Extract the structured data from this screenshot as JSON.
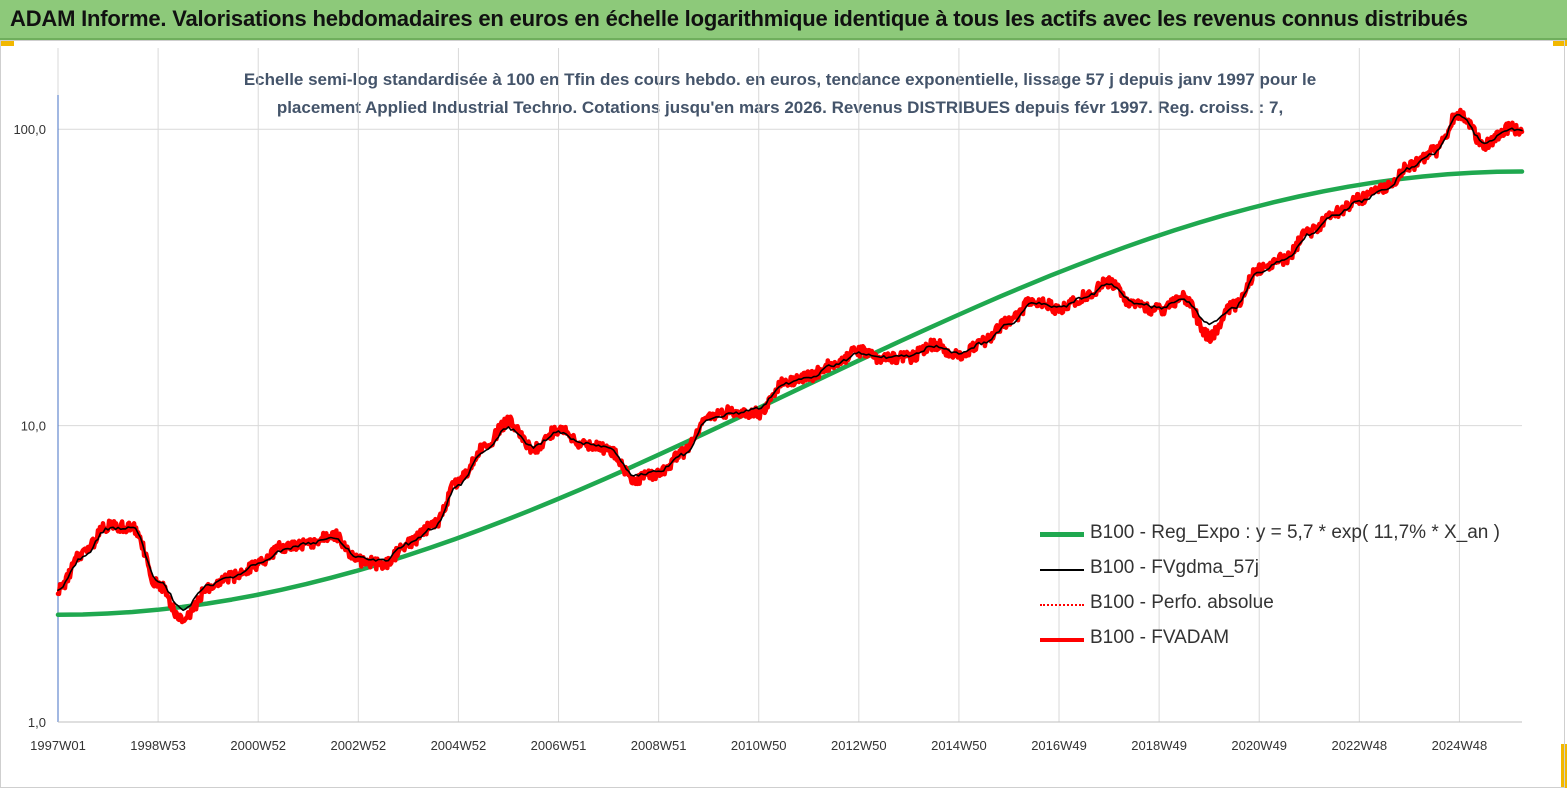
{
  "header": {
    "title": "ADAM Informe. Valorisations hebdomadaires en euros en échelle logarithmique identique à tous les actifs avec les revenus connus distribués"
  },
  "chart_data": {
    "type": "line",
    "title": "Echelle semi-log standardisée à 100 en Tfin des cours hebdo. en euros, tendance exponentielle, lissage 57 j depuis janv 1997 pour le placement Applied Industrial Techno. Cotations jusqu'en mars 2026. Revenus DISTRIBUES depuis févr 1997. Reg. croiss. : 7,",
    "title_lines": [
      "Echelle semi-log standardisée à 100 en Tfin des cours hebdo. en euros, tendance exponentielle, lissage 57 j depuis janv 1997 pour le",
      "placement Applied Industrial Techno. Cotations jusqu'en mars 2026. Revenus DISTRIBUES depuis févr 1997.  Reg. croiss. : 7,"
    ],
    "y_scale": "log",
    "ylim": [
      1,
      200
    ],
    "y_ticks": [
      1,
      10,
      100
    ],
    "y_tick_labels": [
      "1,0",
      "10,0",
      "100,0"
    ],
    "xlim": [
      1997.0,
      2026.25
    ],
    "x_ticks": [
      1997.0,
      1999.0,
      2001.0,
      2003.0,
      2005.0,
      2007.0,
      2009.0,
      2011.0,
      2013.0,
      2015.0,
      2017.0,
      2019.0,
      2021.0,
      2023.0,
      2025.0
    ],
    "x_tick_labels": [
      "1997W01",
      "1998W53",
      "2000W52",
      "2002W52",
      "2004W52",
      "2006W51",
      "2008W51",
      "2010W50",
      "2012W50",
      "2014W50",
      "2016W49",
      "2018W49",
      "2020W49",
      "2022W48",
      "2024W48"
    ],
    "grid": true,
    "legend_position": "bottom-right",
    "series": [
      {
        "name": "B100 - Reg_Expo : y = 5,7 * exp( 11,7% *  X_an )",
        "color": "#1fa84f",
        "style": "solid-thick",
        "x": [
          1997.0,
          2026.25
        ],
        "y": [
          2.3,
          72
        ]
      },
      {
        "name": "B100 - FVgdma_57j",
        "color": "#000000",
        "style": "solid-thin",
        "x": [
          1997.0,
          1997.5,
          1998.0,
          1998.5,
          1999.0,
          1999.5,
          2000.0,
          2000.5,
          2001.0,
          2001.5,
          2002.0,
          2002.5,
          2003.0,
          2003.5,
          2004.0,
          2004.5,
          2005.0,
          2005.5,
          2006.0,
          2006.5,
          2007.0,
          2007.5,
          2008.0,
          2008.5,
          2009.0,
          2009.5,
          2010.0,
          2010.5,
          2011.0,
          2011.5,
          2012.0,
          2012.5,
          2013.0,
          2013.5,
          2014.0,
          2014.5,
          2015.0,
          2015.5,
          2016.0,
          2016.5,
          2017.0,
          2017.5,
          2018.0,
          2018.5,
          2019.0,
          2019.5,
          2020.0,
          2020.5,
          2021.0,
          2021.5,
          2022.0,
          2022.5,
          2023.0,
          2023.5,
          2024.0,
          2024.5,
          2025.0,
          2025.5,
          2026.0,
          2026.25
        ],
        "y": [
          2.8,
          3.6,
          4.5,
          4.5,
          3.0,
          2.4,
          2.9,
          3.1,
          3.4,
          3.8,
          4.0,
          4.2,
          3.6,
          3.5,
          4.0,
          4.5,
          6.3,
          8.2,
          9.8,
          8.5,
          9.5,
          8.7,
          8.5,
          6.8,
          7.0,
          8.0,
          10.5,
          11.0,
          11.5,
          13.8,
          14.5,
          16.0,
          17.5,
          17.0,
          17.2,
          18.5,
          17.5,
          19.0,
          22.0,
          26.0,
          25.0,
          27.0,
          30.0,
          26.0,
          25.0,
          26.5,
          22.0,
          25.0,
          33.0,
          36.0,
          44.0,
          51.0,
          57.0,
          62.0,
          74.0,
          83.0,
          112.0,
          90.0,
          100.0,
          99.0
        ]
      },
      {
        "name": "B100 - Perfo. absolue",
        "color": "#ff0000",
        "style": "dotted",
        "x": [
          1997.0,
          1997.5,
          1998.0,
          1998.5,
          1999.0,
          1999.5,
          2000.0,
          2000.5,
          2001.0,
          2001.5,
          2002.0,
          2002.5,
          2003.0,
          2003.5,
          2004.0,
          2004.5,
          2005.0,
          2005.5,
          2006.0,
          2006.5,
          2007.0,
          2007.5,
          2008.0,
          2008.5,
          2009.0,
          2009.5,
          2010.0,
          2010.5,
          2011.0,
          2011.5,
          2012.0,
          2012.5,
          2013.0,
          2013.5,
          2014.0,
          2014.5,
          2015.0,
          2015.5,
          2016.0,
          2016.5,
          2017.0,
          2017.5,
          2018.0,
          2018.5,
          2019.0,
          2019.5,
          2020.0,
          2020.5,
          2021.0,
          2021.5,
          2022.0,
          2022.5,
          2023.0,
          2023.5,
          2024.0,
          2024.5,
          2025.0,
          2025.5,
          2026.0,
          2026.25
        ],
        "y": [
          2.8,
          3.7,
          4.6,
          4.5,
          2.9,
          2.2,
          2.8,
          3.1,
          3.4,
          3.9,
          4.0,
          4.3,
          3.5,
          3.4,
          4.0,
          4.6,
          6.5,
          8.4,
          10.3,
          8.3,
          9.7,
          8.6,
          8.3,
          6.6,
          6.9,
          8.1,
          10.8,
          11.2,
          11.0,
          14.0,
          14.7,
          16.2,
          17.8,
          16.8,
          17.0,
          18.8,
          17.2,
          19.2,
          22.5,
          26.5,
          24.8,
          27.2,
          30.5,
          25.5,
          24.5,
          27.0,
          20.0,
          25.5,
          33.5,
          36.5,
          45.0,
          52.0,
          58.0,
          63.0,
          75.0,
          84.0,
          113.0,
          89.0,
          101.0,
          98.0
        ]
      },
      {
        "name": "B100 - FVADAM",
        "color": "#ff0000",
        "style": "solid-thick",
        "x": [
          1997.0,
          1997.5,
          1998.0,
          1998.5,
          1999.0,
          1999.5,
          2000.0,
          2000.5,
          2001.0,
          2001.5,
          2002.0,
          2002.5,
          2003.0,
          2003.5,
          2004.0,
          2004.5,
          2005.0,
          2005.5,
          2006.0,
          2006.5,
          2007.0,
          2007.5,
          2008.0,
          2008.5,
          2009.0,
          2009.5,
          2010.0,
          2010.5,
          2011.0,
          2011.5,
          2012.0,
          2012.5,
          2013.0,
          2013.5,
          2014.0,
          2014.5,
          2015.0,
          2015.5,
          2016.0,
          2016.5,
          2017.0,
          2017.5,
          2018.0,
          2018.5,
          2019.0,
          2019.5,
          2020.0,
          2020.5,
          2021.0,
          2021.5,
          2022.0,
          2022.5,
          2023.0,
          2023.5,
          2024.0,
          2024.5,
          2025.0,
          2025.5,
          2026.0,
          2026.25
        ],
        "y": [
          2.8,
          3.7,
          4.6,
          4.5,
          2.9,
          2.2,
          2.8,
          3.1,
          3.4,
          3.9,
          4.0,
          4.3,
          3.5,
          3.4,
          4.0,
          4.6,
          6.5,
          8.4,
          10.3,
          8.3,
          9.7,
          8.6,
          8.3,
          6.6,
          6.9,
          8.1,
          10.8,
          11.2,
          11.0,
          14.0,
          14.7,
          16.2,
          17.8,
          16.8,
          17.0,
          18.8,
          17.2,
          19.2,
          22.5,
          26.5,
          24.8,
          27.2,
          30.5,
          25.5,
          24.5,
          27.0,
          20.0,
          25.5,
          33.5,
          36.5,
          45.0,
          52.0,
          58.0,
          63.0,
          75.0,
          84.0,
          113.0,
          89.0,
          101.0,
          98.0
        ]
      }
    ]
  }
}
